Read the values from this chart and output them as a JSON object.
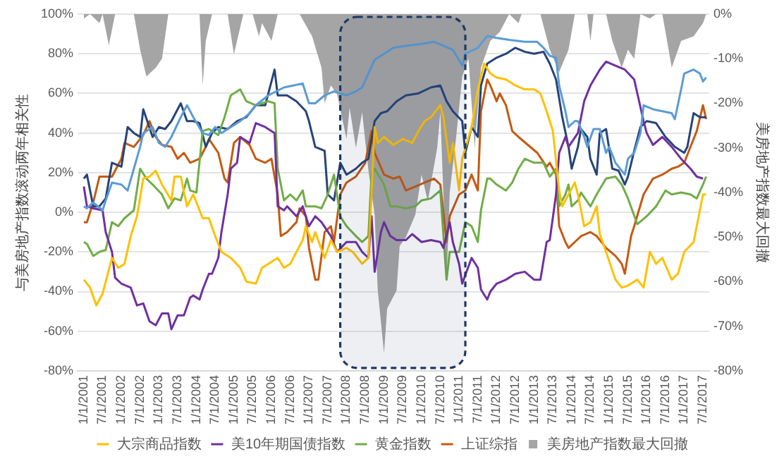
{
  "chart_data": {
    "type": "line",
    "ylabel": "与美房地产指数滚动两年相关性",
    "y2label": "美房地产指数最大回撤",
    "xlim": [
      "2000-11",
      "2017-09"
    ],
    "xticks": [
      {
        "value": "2001-01",
        "label": "1/1/2001"
      },
      {
        "value": "2001-07",
        "label": "7/1/2001"
      },
      {
        "value": "2002-01",
        "label": "1/1/2002"
      },
      {
        "value": "2002-07",
        "label": "7/1/2002"
      },
      {
        "value": "2003-01",
        "label": "1/1/2003"
      },
      {
        "value": "2003-07",
        "label": "7/1/2003"
      },
      {
        "value": "2004-01",
        "label": "1/1/2004"
      },
      {
        "value": "2004-07",
        "label": "7/1/2004"
      },
      {
        "value": "2005-01",
        "label": "1/1/2005"
      },
      {
        "value": "2005-07",
        "label": "7/1/2005"
      },
      {
        "value": "2006-01",
        "label": "1/1/2006"
      },
      {
        "value": "2006-07",
        "label": "7/1/2006"
      },
      {
        "value": "2007-01",
        "label": "1/1/2007"
      },
      {
        "value": "2007-07",
        "label": "7/1/2007"
      },
      {
        "value": "2008-01",
        "label": "1/1/2008"
      },
      {
        "value": "2008-07",
        "label": "7/1/2008"
      },
      {
        "value": "2009-01",
        "label": "1/1/2009"
      },
      {
        "value": "2009-07",
        "label": "7/1/2009"
      },
      {
        "value": "2010-01",
        "label": "1/1/2010"
      },
      {
        "value": "2010-07",
        "label": "7/1/2010"
      },
      {
        "value": "2011-01",
        "label": "1/1/2011"
      },
      {
        "value": "2011-07",
        "label": "7/1/2011"
      },
      {
        "value": "2012-01",
        "label": "1/1/2012"
      },
      {
        "value": "2012-07",
        "label": "7/1/2012"
      },
      {
        "value": "2013-01",
        "label": "1/1/2013"
      },
      {
        "value": "2013-07",
        "label": "7/1/2013"
      },
      {
        "value": "2014-01",
        "label": "1/1/2014"
      },
      {
        "value": "2014-07",
        "label": "7/1/2014"
      },
      {
        "value": "2015-01",
        "label": "1/1/2015"
      },
      {
        "value": "2015-07",
        "label": "7/1/2015"
      },
      {
        "value": "2016-01",
        "label": "1/1/2016"
      },
      {
        "value": "2016-07",
        "label": "7/1/2016"
      },
      {
        "value": "2017-01",
        "label": "1/1/2017"
      },
      {
        "value": "2017-07",
        "label": "7/1/2017"
      }
    ],
    "ylim": [
      -80,
      100
    ],
    "yticks": [
      {
        "value": -80,
        "label": "-80%"
      },
      {
        "value": -60,
        "label": "-60%"
      },
      {
        "value": -40,
        "label": "-40%"
      },
      {
        "value": -20,
        "label": "-20%"
      },
      {
        "value": 0,
        "label": "0%"
      },
      {
        "value": 20,
        "label": "20%"
      },
      {
        "value": 40,
        "label": "40%"
      },
      {
        "value": 60,
        "label": "60%"
      },
      {
        "value": 80,
        "label": "80%"
      },
      {
        "value": 100,
        "label": "100%"
      }
    ],
    "y2lim": [
      -80,
      0
    ],
    "y2ticks": [
      {
        "value": -80,
        "label": "-80%"
      },
      {
        "value": -70,
        "label": "-70%"
      },
      {
        "value": -60,
        "label": "-60%"
      },
      {
        "value": -50,
        "label": "-50%"
      },
      {
        "value": -40,
        "label": "-40%"
      },
      {
        "value": -30,
        "label": "-30%"
      },
      {
        "value": -20,
        "label": "-20%"
      },
      {
        "value": -10,
        "label": "-10%"
      },
      {
        "value": 0,
        "label": "0%"
      }
    ],
    "grid": "y",
    "legend": "bottom",
    "bands": [
      {
        "axis": "x",
        "from": "2007-11",
        "to": "2011-03",
        "color": "#1f3864"
      }
    ],
    "series": [
      {
        "name": "美房地产指数最大回撤",
        "type": "area",
        "axis": "y2",
        "color": "#a5a5a5",
        "x": [
          "2001-01",
          "2001-03",
          "2001-06",
          "2001-07",
          "2001-09",
          "2001-11",
          "2002-05",
          "2002-07",
          "2002-09",
          "2002-12",
          "2003-02",
          "2003-04",
          "2004-02",
          "2004-03",
          "2004-04",
          "2004-06",
          "2004-11",
          "2005-01",
          "2005-02",
          "2005-04",
          "2005-07",
          "2005-09",
          "2005-10",
          "2006-01",
          "2006-03",
          "2006-10",
          "2007-02",
          "2007-05",
          "2007-06",
          "2007-08",
          "2007-10",
          "2008-01",
          "2008-02",
          "2008-04",
          "2008-06",
          "2008-08",
          "2008-10",
          "2008-11",
          "2009-01",
          "2009-02",
          "2009-05",
          "2009-06",
          "2009-08",
          "2009-11",
          "2010-01",
          "2010-03",
          "2010-06",
          "2010-07",
          "2010-09",
          "2010-10",
          "2010-12",
          "2011-02",
          "2011-04",
          "2011-06",
          "2011-08",
          "2011-11",
          "2012-02",
          "2012-05",
          "2012-08",
          "2012-09",
          "2013-03",
          "2013-06",
          "2013-09",
          "2013-12",
          "2014-02",
          "2014-06",
          "2014-07",
          "2014-08",
          "2014-12",
          "2015-02",
          "2015-05",
          "2015-07",
          "2015-09",
          "2015-11",
          "2016-02",
          "2016-04",
          "2016-06",
          "2016-08",
          "2016-09",
          "2016-12",
          "2017-04",
          "2017-07",
          "2017-08"
        ],
        "values": [
          -1,
          0,
          -2,
          0,
          -7,
          0,
          0,
          -8,
          -14,
          -12,
          -10,
          0,
          0,
          -16,
          -6,
          0,
          0,
          -9,
          -6,
          0,
          0,
          -5,
          -2,
          -6,
          0,
          0,
          -5,
          -12,
          -20,
          -16,
          -18,
          -28,
          -21,
          -30,
          -22,
          -35,
          -45,
          -62,
          -76,
          -66,
          -62,
          -52,
          -50,
          -45,
          -36,
          -42,
          -30,
          -22,
          -60,
          -40,
          -28,
          -14,
          -10,
          -30,
          -12,
          -6,
          -4,
          0,
          -2,
          0,
          0,
          -8,
          -13,
          -8,
          0,
          0,
          -6,
          0,
          0,
          -6,
          -12,
          -8,
          -10,
          0,
          -1,
          0,
          0,
          -8,
          -12,
          -6,
          -5,
          -2,
          0
        ]
      },
      {
        "color": "#5b9bd5",
        "x": [
          "2001-01",
          "2001-02",
          "2001-04",
          "2001-07",
          "2001-08",
          "2001-10",
          "2002-01",
          "2002-03",
          "2002-05",
          "2002-07",
          "2002-08",
          "2002-11",
          "2003-01",
          "2003-03",
          "2003-05",
          "2003-08",
          "2003-10",
          "2003-12",
          "2004-03",
          "2004-05",
          "2004-07",
          "2004-09",
          "2004-12",
          "2005-03",
          "2005-06",
          "2005-08",
          "2005-12",
          "2006-05",
          "2006-08",
          "2006-11",
          "2007-01",
          "2007-03",
          "2007-06",
          "2007-09",
          "2008-01",
          "2008-04",
          "2008-06",
          "2008-08",
          "2008-10",
          "2009-01",
          "2009-04",
          "2009-08",
          "2010-01",
          "2010-05",
          "2010-08",
          "2010-11",
          "2011-02",
          "2011-03",
          "2011-07",
          "2011-10",
          "2012-01",
          "2012-05",
          "2012-10",
          "2013-02",
          "2013-04",
          "2013-06",
          "2013-08",
          "2013-09",
          "2013-11",
          "2013-12",
          "2014-02",
          "2014-03",
          "2014-05",
          "2014-06",
          "2014-08",
          "2014-10",
          "2014-12",
          "2015-01",
          "2015-03",
          "2015-06",
          "2015-07",
          "2015-09",
          "2015-11",
          "2015-12",
          "2016-03",
          "2016-06",
          "2016-09",
          "2016-10",
          "2016-12",
          "2017-01",
          "2017-04",
          "2017-06",
          "2017-07",
          "2017-08"
        ],
        "values": [
          3,
          2,
          5,
          1,
          6,
          15,
          14,
          11,
          22,
          33,
          40,
          43,
          35,
          33,
          38,
          48,
          54,
          48,
          40,
          39,
          43,
          40,
          43,
          46,
          50,
          54,
          59,
          63,
          64,
          65,
          55,
          55,
          59,
          61,
          59,
          61,
          63,
          70,
          77,
          80,
          83,
          84,
          85,
          86,
          84,
          82,
          74,
          80,
          83,
          89,
          88,
          87,
          86,
          86,
          83,
          79,
          78,
          64,
          51,
          43,
          46,
          46,
          38,
          33,
          42,
          42,
          30,
          33,
          25,
          19,
          27,
          30,
          40,
          54,
          52,
          51,
          50,
          47,
          62,
          70,
          72,
          70,
          66,
          68
        ]
      },
      {
        "name": "大宗商品指数",
        "color": "#ffc000",
        "x": [
          "2001-01",
          "2001-03",
          "2001-05",
          "2001-07",
          "2001-10",
          "2001-12",
          "2002-02",
          "2002-04",
          "2002-06",
          "2002-08",
          "2002-10",
          "2002-12",
          "2003-02",
          "2003-05",
          "2003-06",
          "2003-08",
          "2003-10",
          "2003-12",
          "2004-02",
          "2004-03",
          "2004-05",
          "2004-07",
          "2004-09",
          "2004-12",
          "2005-03",
          "2005-05",
          "2005-08",
          "2005-10",
          "2005-12",
          "2006-03",
          "2006-05",
          "2006-07",
          "2006-09",
          "2006-11",
          "2006-12",
          "2007-02",
          "2007-03",
          "2007-06",
          "2007-08",
          "2007-10",
          "2008-01",
          "2008-03",
          "2008-06",
          "2008-08",
          "2008-10",
          "2008-11",
          "2009-01",
          "2009-04",
          "2009-07",
          "2009-10",
          "2009-12",
          "2010-02",
          "2010-04",
          "2010-07",
          "2010-08",
          "2010-10",
          "2010-11",
          "2011-01",
          "2011-02",
          "2011-05",
          "2011-07",
          "2011-09",
          "2011-11",
          "2012-01",
          "2012-04",
          "2012-07",
          "2012-10",
          "2013-01",
          "2013-03",
          "2013-05",
          "2013-07",
          "2013-09",
          "2013-10",
          "2013-12",
          "2014-02",
          "2014-03",
          "2014-05",
          "2014-07",
          "2014-09",
          "2014-10",
          "2014-12",
          "2015-03",
          "2015-05",
          "2015-07",
          "2015-10",
          "2015-12",
          "2016-02",
          "2016-04",
          "2016-06",
          "2016-09",
          "2016-11",
          "2017-01",
          "2017-04",
          "2017-05",
          "2017-07",
          "2017-08"
        ],
        "values": [
          -34,
          -38,
          -47,
          -41,
          -23,
          -28,
          -26,
          -12,
          -2,
          17,
          18,
          21,
          14,
          6,
          18,
          18,
          3,
          9,
          1,
          -3,
          -3,
          -12,
          -20,
          -23,
          -28,
          -35,
          -36,
          -28,
          -26,
          -23,
          -28,
          -26,
          -20,
          -14,
          -7,
          -15,
          -10,
          -23,
          -14,
          -20,
          -18,
          -20,
          -26,
          -23,
          43,
          35,
          38,
          34,
          37,
          35,
          41,
          46,
          48,
          54,
          48,
          25,
          35,
          11,
          27,
          43,
          62,
          75,
          70,
          68,
          67,
          64,
          62,
          62,
          60,
          51,
          41,
          11,
          3,
          9,
          15,
          9,
          -7,
          -5,
          3,
          -11,
          -20,
          -34,
          -38,
          -37,
          -34,
          -38,
          -20,
          -26,
          -23,
          -34,
          -31,
          -20,
          -15,
          -7,
          9,
          9
        ]
      },
      {
        "name": "美10年期国债指数",
        "color": "#7030a0",
        "x": [
          "2001-01",
          "2001-02",
          "2001-04",
          "2001-07",
          "2001-08",
          "2001-10",
          "2001-11",
          "2002-01",
          "2002-04",
          "2002-06",
          "2002-08",
          "2002-10",
          "2002-12",
          "2003-02",
          "2003-04",
          "2003-05",
          "2003-07",
          "2003-09",
          "2003-11",
          "2003-12",
          "2004-02",
          "2004-03",
          "2004-05",
          "2004-06",
          "2004-08",
          "2004-09",
          "2004-11",
          "2004-12",
          "2005-02",
          "2005-03",
          "2005-06",
          "2005-08",
          "2005-11",
          "2006-02",
          "2006-03",
          "2006-05",
          "2006-06",
          "2006-09",
          "2006-11",
          "2007-01",
          "2007-03",
          "2007-05",
          "2007-08",
          "2007-10",
          "2008-01",
          "2008-04",
          "2008-06",
          "2008-08",
          "2008-09",
          "2008-10",
          "2008-12",
          "2009-01",
          "2009-03",
          "2009-05",
          "2009-08",
          "2009-10",
          "2010-01",
          "2010-04",
          "2010-07",
          "2010-08",
          "2010-10",
          "2010-11",
          "2011-01",
          "2011-02",
          "2011-05",
          "2011-07",
          "2011-08",
          "2011-10",
          "2011-11",
          "2012-01",
          "2012-04",
          "2012-07",
          "2012-10",
          "2013-01",
          "2013-03",
          "2013-05",
          "2013-06",
          "2013-08",
          "2013-09",
          "2013-11",
          "2013-12",
          "2014-03",
          "2014-05",
          "2014-07",
          "2014-10",
          "2014-12",
          "2015-03",
          "2015-06",
          "2015-09",
          "2015-10",
          "2015-12",
          "2016-01",
          "2016-03",
          "2016-06",
          "2016-09",
          "2016-12",
          "2017-03",
          "2017-05",
          "2017-07"
        ],
        "values": [
          13,
          3,
          2,
          1,
          -10,
          -20,
          -33,
          -36,
          -38,
          -47,
          -46,
          -55,
          -57,
          -51,
          -51,
          -59,
          -52,
          -52,
          -43,
          -42,
          -44,
          -39,
          -31,
          -31,
          -23,
          -10,
          9,
          22,
          25,
          38,
          35,
          45,
          43,
          40,
          3,
          1,
          3,
          -2,
          3,
          -7,
          -2,
          -5,
          -12,
          -20,
          -15,
          -15,
          -20,
          -23,
          -2,
          -30,
          -10,
          -5,
          -12,
          -14,
          -14,
          -11,
          -15,
          -14,
          -15,
          -18,
          -5,
          -15,
          -26,
          -36,
          -23,
          -28,
          -39,
          -44,
          -40,
          -36,
          -34,
          -31,
          -30,
          -34,
          -34,
          -15,
          -14,
          9,
          30,
          38,
          33,
          40,
          56,
          64,
          72,
          76,
          74,
          72,
          67,
          60,
          46,
          40,
          34,
          38,
          33,
          27,
          22,
          18,
          17
        ]
      },
      {
        "name": "黄金指数",
        "color": "#70ad47",
        "x": [
          "2001-01",
          "2001-02",
          "2001-04",
          "2001-06",
          "2001-08",
          "2001-10",
          "2001-12",
          "2002-02",
          "2002-05",
          "2002-07",
          "2002-09",
          "2002-11",
          "2003-02",
          "2003-04",
          "2003-06",
          "2003-08",
          "2003-10",
          "2003-11",
          "2004-01",
          "2004-03",
          "2004-05",
          "2004-08",
          "2004-10",
          "2004-12",
          "2005-03",
          "2005-05",
          "2005-08",
          "2005-10",
          "2005-12",
          "2006-02",
          "2006-03",
          "2006-05",
          "2006-07",
          "2006-09",
          "2006-11",
          "2006-12",
          "2007-03",
          "2007-05",
          "2007-07",
          "2007-09",
          "2007-11",
          "2008-01",
          "2008-04",
          "2008-06",
          "2008-08",
          "2008-09",
          "2008-10",
          "2009-01",
          "2009-03",
          "2009-05",
          "2009-08",
          "2009-11",
          "2010-01",
          "2010-04",
          "2010-07",
          "2010-09",
          "2010-10",
          "2011-01",
          "2011-03",
          "2011-05",
          "2011-07",
          "2011-08",
          "2011-10",
          "2011-11",
          "2012-01",
          "2012-04",
          "2012-06",
          "2012-08",
          "2012-10",
          "2013-01",
          "2013-04",
          "2013-06",
          "2013-08",
          "2013-09",
          "2013-11",
          "2013-12",
          "2014-01",
          "2014-03",
          "2014-04",
          "2014-07",
          "2014-09",
          "2014-12",
          "2015-03",
          "2015-05",
          "2015-07",
          "2015-10",
          "2016-01",
          "2016-04",
          "2016-07",
          "2016-09",
          "2016-12",
          "2017-03",
          "2017-05",
          "2017-07",
          "2017-08"
        ],
        "values": [
          -15,
          -16,
          -22,
          -20,
          -19,
          -5,
          -7,
          -3,
          1,
          22,
          17,
          14,
          9,
          2,
          7,
          6,
          17,
          11,
          10,
          41,
          42,
          39,
          48,
          59,
          62,
          56,
          54,
          55,
          56,
          55,
          22,
          6,
          9,
          6,
          11,
          3,
          3,
          2,
          9,
          19,
          -2,
          -7,
          -12,
          -15,
          -12,
          19,
          22,
          14,
          3,
          3,
          2,
          3,
          6,
          7,
          11,
          -34,
          -20,
          -20,
          -5,
          -7,
          -15,
          1,
          17,
          17,
          14,
          11,
          15,
          22,
          27,
          25,
          25,
          18,
          22,
          3,
          9,
          14,
          3,
          6,
          10,
          3,
          9,
          17,
          18,
          14,
          7,
          -6,
          -2,
          3,
          11,
          9,
          10,
          9,
          7,
          14,
          18
        ]
      },
      {
        "color": "#264478",
        "x": [
          "2001-01",
          "2001-02",
          "2001-04",
          "2001-06",
          "2001-08",
          "2001-10",
          "2002-01",
          "2002-03",
          "2002-05",
          "2002-07",
          "2002-08",
          "2002-11",
          "2003-01",
          "2003-03",
          "2003-05",
          "2003-08",
          "2003-10",
          "2003-12",
          "2004-02",
          "2004-04",
          "2004-06",
          "2004-08",
          "2004-11",
          "2005-02",
          "2005-05",
          "2005-08",
          "2005-11",
          "2006-02",
          "2006-03",
          "2006-06",
          "2006-09",
          "2006-12",
          "2007-01",
          "2007-03",
          "2007-06",
          "2007-07",
          "2007-09",
          "2007-11",
          "2008-01",
          "2008-04",
          "2008-06",
          "2008-08",
          "2008-10",
          "2008-12",
          "2009-02",
          "2009-05",
          "2009-08",
          "2009-12",
          "2010-04",
          "2010-07",
          "2010-09",
          "2010-11",
          "2011-02",
          "2011-03",
          "2011-05",
          "2011-07",
          "2011-08",
          "2011-10",
          "2012-01",
          "2012-04",
          "2012-07",
          "2012-10",
          "2013-01",
          "2013-04",
          "2013-06",
          "2013-08",
          "2013-10",
          "2013-12",
          "2014-01",
          "2014-03",
          "2014-04",
          "2014-06",
          "2014-07",
          "2014-09",
          "2014-10",
          "2014-12",
          "2015-02",
          "2015-04",
          "2015-06",
          "2015-07",
          "2015-09",
          "2015-11",
          "2016-01",
          "2016-04",
          "2016-07",
          "2016-10",
          "2017-01",
          "2017-02",
          "2017-04",
          "2017-06",
          "2017-08"
        ],
        "values": [
          17,
          19,
          3,
          3,
          7,
          25,
          23,
          43,
          40,
          38,
          52,
          38,
          43,
          42,
          46,
          55,
          46,
          46,
          45,
          33,
          40,
          43,
          42,
          46,
          48,
          54,
          54,
          72,
          59,
          59,
          56,
          51,
          46,
          33,
          31,
          9,
          6,
          25,
          19,
          22,
          25,
          27,
          46,
          50,
          51,
          56,
          59,
          60,
          63,
          64,
          56,
          51,
          46,
          30,
          43,
          38,
          64,
          75,
          78,
          80,
          83,
          81,
          80,
          81,
          75,
          67,
          48,
          33,
          22,
          33,
          42,
          38,
          27,
          19,
          40,
          42,
          22,
          21,
          14,
          18,
          31,
          43,
          46,
          45,
          38,
          33,
          30,
          33,
          50,
          48,
          48
        ]
      },
      {
        "name": "上证综指",
        "color": "#c55a11",
        "x": [
          "2001-01",
          "2001-02",
          "2001-04",
          "2001-06",
          "2001-08",
          "2001-10",
          "2002-01",
          "2002-02",
          "2002-05",
          "2002-08",
          "2002-10",
          "2002-12",
          "2003-02",
          "2003-05",
          "2003-07",
          "2003-09",
          "2003-11",
          "2004-02",
          "2004-04",
          "2004-05",
          "2004-08",
          "2004-10",
          "2004-11",
          "2005-01",
          "2005-03",
          "2005-06",
          "2005-08",
          "2005-11",
          "2006-01",
          "2006-03",
          "2006-04",
          "2006-06",
          "2006-09",
          "2006-10",
          "2006-12",
          "2007-01",
          "2007-03",
          "2007-04",
          "2007-06",
          "2007-08",
          "2007-09",
          "2007-11",
          "2008-01",
          "2008-04",
          "2008-07",
          "2008-09",
          "2008-10",
          "2009-01",
          "2009-04",
          "2009-06",
          "2009-08",
          "2009-11",
          "2010-02",
          "2010-05",
          "2010-07",
          "2010-09",
          "2010-10",
          "2011-01",
          "2011-03",
          "2011-05",
          "2011-07",
          "2011-08",
          "2011-10",
          "2011-11",
          "2012-01",
          "2012-02",
          "2012-04",
          "2012-06",
          "2012-08",
          "2012-11",
          "2013-02",
          "2013-05",
          "2013-06",
          "2013-08",
          "2013-09",
          "2013-11",
          "2013-12",
          "2014-02",
          "2014-04",
          "2014-07",
          "2014-09",
          "2014-12",
          "2015-03",
          "2015-05",
          "2015-06",
          "2015-08",
          "2015-09",
          "2015-12",
          "2016-03",
          "2016-06",
          "2016-09",
          "2016-11",
          "2017-01",
          "2017-03",
          "2017-05",
          "2017-07",
          "2017-08"
        ],
        "values": [
          -5,
          -5,
          5,
          18,
          18,
          18,
          27,
          35,
          33,
          39,
          46,
          38,
          34,
          33,
          27,
          30,
          25,
          27,
          33,
          37,
          30,
          17,
          15,
          35,
          38,
          34,
          27,
          25,
          27,
          9,
          -12,
          -10,
          -5,
          2,
          -2,
          -18,
          -34,
          -34,
          -10,
          -7,
          -15,
          9,
          15,
          18,
          25,
          41,
          30,
          19,
          17,
          18,
          11,
          13,
          15,
          17,
          14,
          -15,
          -2,
          9,
          11,
          19,
          11,
          51,
          67,
          64,
          56,
          60,
          54,
          41,
          38,
          34,
          30,
          23,
          25,
          19,
          -7,
          -15,
          -18,
          -15,
          -12,
          -10,
          -12,
          -18,
          -22,
          -26,
          -31,
          -12,
          -7,
          9,
          17,
          19,
          22,
          23,
          25,
          33,
          41,
          54,
          47
        ]
      }
    ]
  }
}
